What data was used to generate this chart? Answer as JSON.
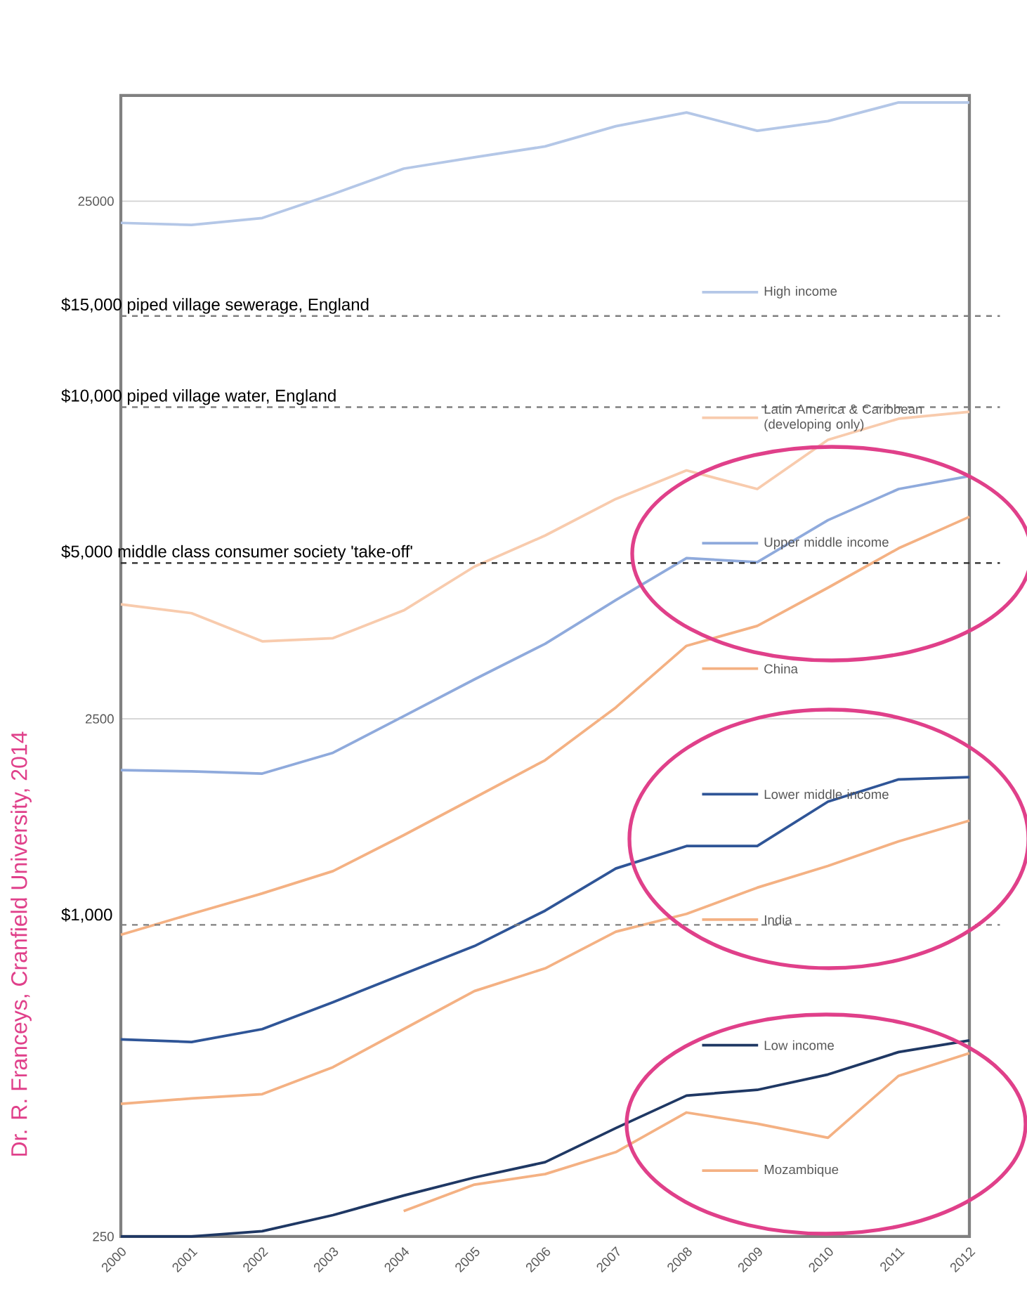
{
  "chart_data": {
    "type": "line",
    "log": "y",
    "x": [
      2000,
      2001,
      2002,
      2003,
      2004,
      2005,
      2006,
      2007,
      2008,
      2009,
      2010,
      2011,
      2012
    ],
    "xlim": [
      2000,
      2012
    ],
    "xticks": [
      2000,
      2001,
      2002,
      2003,
      2004,
      2005,
      2006,
      2007,
      2008,
      2009,
      2010,
      2011,
      2012
    ],
    "ylim": [
      250,
      40000
    ],
    "yticks": [
      250,
      2500,
      25000
    ],
    "grid": "y",
    "legend": "right",
    "series": [
      {
        "name": "High income",
        "color": "#b4c7e7",
        "values": [
          22700,
          22500,
          23200,
          25800,
          28900,
          30400,
          31900,
          34900,
          37100,
          34200,
          35700,
          38800,
          38800
        ]
      },
      {
        "name": "Latin America & Caribbean (developing only)",
        "color": "#f8cbad",
        "values": [
          4160,
          4000,
          3530,
          3580,
          4050,
          4920,
          5650,
          6650,
          7550,
          6950,
          8650,
          9500,
          9800
        ]
      },
      {
        "name": "Upper middle income",
        "color": "#8faadc",
        "values": [
          1990,
          1980,
          1960,
          2150,
          2530,
          2980,
          3490,
          4240,
          5110,
          5020,
          6050,
          6950,
          7360
        ]
      },
      {
        "name": "China",
        "color": "#f4b183",
        "values": [
          957,
          1050,
          1150,
          1270,
          1490,
          1760,
          2080,
          2630,
          3460,
          3780,
          4480,
          5340,
          6140
        ]
      },
      {
        "name": "Lower middle income",
        "color": "#2f5597",
        "values": [
          601,
          594,
          629,
          709,
          804,
          910,
          1065,
          1285,
          1420,
          1420,
          1730,
          1910,
          1930
        ]
      },
      {
        "name": "India",
        "color": "#f4b183",
        "values": [
          451,
          462,
          471,
          531,
          629,
          745,
          824,
          970,
          1050,
          1180,
          1300,
          1450,
          1590
        ]
      },
      {
        "name": "Low income",
        "color": "#1f3864",
        "values": [
          250,
          250,
          256,
          275,
          300,
          325,
          348,
          405,
          468,
          480,
          514,
          568,
          598
        ]
      },
      {
        "name": "Mozambique",
        "color": "#f4b183",
        "values": [
          null,
          null,
          null,
          null,
          280,
          315,
          330,
          364,
          434,
          413,
          388,
          511,
          565
        ]
      }
    ],
    "ref_lines": [
      {
        "axis": "y",
        "value": 15000,
        "label": "$15,000 piped village sewerage, England",
        "color": "#808080",
        "line_style": "dashed"
      },
      {
        "axis": "y",
        "value": 10000,
        "label": "$10,000 piped village water, England",
        "color": "#808080",
        "line_style": "dashed"
      },
      {
        "axis": "y",
        "value": 5000,
        "label": "$5,000 middle class consumer society 'take-off'",
        "color": "#262626",
        "line_style": "dashed"
      },
      {
        "axis": "y",
        "value": 1000,
        "label": "$1,000",
        "color": "#808080",
        "line_style": "dashed"
      }
    ],
    "annotations": [
      "Dr. R. Franceys, Cranfield University, 2014"
    ]
  }
}
